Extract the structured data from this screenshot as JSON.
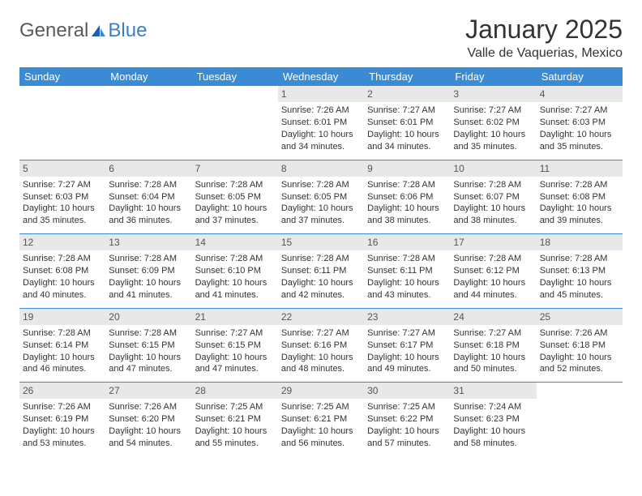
{
  "brand": {
    "general": "General",
    "blue": "Blue"
  },
  "title": "January 2025",
  "location": "Valle de Vaquerias, Mexico",
  "colors": {
    "header_bg": "#3b8bd4",
    "header_text": "#ffffff",
    "daynum_bg": "#e8e8e8",
    "daynum_text": "#555555",
    "body_text": "#333333",
    "rule": "#3b8bd4",
    "logo_gray": "#5a5a5a",
    "logo_blue": "#3b7fc4"
  },
  "dow": [
    "Sunday",
    "Monday",
    "Tuesday",
    "Wednesday",
    "Thursday",
    "Friday",
    "Saturday"
  ],
  "weeks": [
    [
      {
        "n": "",
        "sr": "",
        "ss": "",
        "dl": ""
      },
      {
        "n": "",
        "sr": "",
        "ss": "",
        "dl": ""
      },
      {
        "n": "",
        "sr": "",
        "ss": "",
        "dl": ""
      },
      {
        "n": "1",
        "sr": "Sunrise: 7:26 AM",
        "ss": "Sunset: 6:01 PM",
        "dl": "Daylight: 10 hours and 34 minutes."
      },
      {
        "n": "2",
        "sr": "Sunrise: 7:27 AM",
        "ss": "Sunset: 6:01 PM",
        "dl": "Daylight: 10 hours and 34 minutes."
      },
      {
        "n": "3",
        "sr": "Sunrise: 7:27 AM",
        "ss": "Sunset: 6:02 PM",
        "dl": "Daylight: 10 hours and 35 minutes."
      },
      {
        "n": "4",
        "sr": "Sunrise: 7:27 AM",
        "ss": "Sunset: 6:03 PM",
        "dl": "Daylight: 10 hours and 35 minutes."
      }
    ],
    [
      {
        "n": "5",
        "sr": "Sunrise: 7:27 AM",
        "ss": "Sunset: 6:03 PM",
        "dl": "Daylight: 10 hours and 35 minutes."
      },
      {
        "n": "6",
        "sr": "Sunrise: 7:28 AM",
        "ss": "Sunset: 6:04 PM",
        "dl": "Daylight: 10 hours and 36 minutes."
      },
      {
        "n": "7",
        "sr": "Sunrise: 7:28 AM",
        "ss": "Sunset: 6:05 PM",
        "dl": "Daylight: 10 hours and 37 minutes."
      },
      {
        "n": "8",
        "sr": "Sunrise: 7:28 AM",
        "ss": "Sunset: 6:05 PM",
        "dl": "Daylight: 10 hours and 37 minutes."
      },
      {
        "n": "9",
        "sr": "Sunrise: 7:28 AM",
        "ss": "Sunset: 6:06 PM",
        "dl": "Daylight: 10 hours and 38 minutes."
      },
      {
        "n": "10",
        "sr": "Sunrise: 7:28 AM",
        "ss": "Sunset: 6:07 PM",
        "dl": "Daylight: 10 hours and 38 minutes."
      },
      {
        "n": "11",
        "sr": "Sunrise: 7:28 AM",
        "ss": "Sunset: 6:08 PM",
        "dl": "Daylight: 10 hours and 39 minutes."
      }
    ],
    [
      {
        "n": "12",
        "sr": "Sunrise: 7:28 AM",
        "ss": "Sunset: 6:08 PM",
        "dl": "Daylight: 10 hours and 40 minutes."
      },
      {
        "n": "13",
        "sr": "Sunrise: 7:28 AM",
        "ss": "Sunset: 6:09 PM",
        "dl": "Daylight: 10 hours and 41 minutes."
      },
      {
        "n": "14",
        "sr": "Sunrise: 7:28 AM",
        "ss": "Sunset: 6:10 PM",
        "dl": "Daylight: 10 hours and 41 minutes."
      },
      {
        "n": "15",
        "sr": "Sunrise: 7:28 AM",
        "ss": "Sunset: 6:11 PM",
        "dl": "Daylight: 10 hours and 42 minutes."
      },
      {
        "n": "16",
        "sr": "Sunrise: 7:28 AM",
        "ss": "Sunset: 6:11 PM",
        "dl": "Daylight: 10 hours and 43 minutes."
      },
      {
        "n": "17",
        "sr": "Sunrise: 7:28 AM",
        "ss": "Sunset: 6:12 PM",
        "dl": "Daylight: 10 hours and 44 minutes."
      },
      {
        "n": "18",
        "sr": "Sunrise: 7:28 AM",
        "ss": "Sunset: 6:13 PM",
        "dl": "Daylight: 10 hours and 45 minutes."
      }
    ],
    [
      {
        "n": "19",
        "sr": "Sunrise: 7:28 AM",
        "ss": "Sunset: 6:14 PM",
        "dl": "Daylight: 10 hours and 46 minutes."
      },
      {
        "n": "20",
        "sr": "Sunrise: 7:28 AM",
        "ss": "Sunset: 6:15 PM",
        "dl": "Daylight: 10 hours and 47 minutes."
      },
      {
        "n": "21",
        "sr": "Sunrise: 7:27 AM",
        "ss": "Sunset: 6:15 PM",
        "dl": "Daylight: 10 hours and 47 minutes."
      },
      {
        "n": "22",
        "sr": "Sunrise: 7:27 AM",
        "ss": "Sunset: 6:16 PM",
        "dl": "Daylight: 10 hours and 48 minutes."
      },
      {
        "n": "23",
        "sr": "Sunrise: 7:27 AM",
        "ss": "Sunset: 6:17 PM",
        "dl": "Daylight: 10 hours and 49 minutes."
      },
      {
        "n": "24",
        "sr": "Sunrise: 7:27 AM",
        "ss": "Sunset: 6:18 PM",
        "dl": "Daylight: 10 hours and 50 minutes."
      },
      {
        "n": "25",
        "sr": "Sunrise: 7:26 AM",
        "ss": "Sunset: 6:18 PM",
        "dl": "Daylight: 10 hours and 52 minutes."
      }
    ],
    [
      {
        "n": "26",
        "sr": "Sunrise: 7:26 AM",
        "ss": "Sunset: 6:19 PM",
        "dl": "Daylight: 10 hours and 53 minutes."
      },
      {
        "n": "27",
        "sr": "Sunrise: 7:26 AM",
        "ss": "Sunset: 6:20 PM",
        "dl": "Daylight: 10 hours and 54 minutes."
      },
      {
        "n": "28",
        "sr": "Sunrise: 7:25 AM",
        "ss": "Sunset: 6:21 PM",
        "dl": "Daylight: 10 hours and 55 minutes."
      },
      {
        "n": "29",
        "sr": "Sunrise: 7:25 AM",
        "ss": "Sunset: 6:21 PM",
        "dl": "Daylight: 10 hours and 56 minutes."
      },
      {
        "n": "30",
        "sr": "Sunrise: 7:25 AM",
        "ss": "Sunset: 6:22 PM",
        "dl": "Daylight: 10 hours and 57 minutes."
      },
      {
        "n": "31",
        "sr": "Sunrise: 7:24 AM",
        "ss": "Sunset: 6:23 PM",
        "dl": "Daylight: 10 hours and 58 minutes."
      },
      {
        "n": "",
        "sr": "",
        "ss": "",
        "dl": ""
      }
    ]
  ]
}
